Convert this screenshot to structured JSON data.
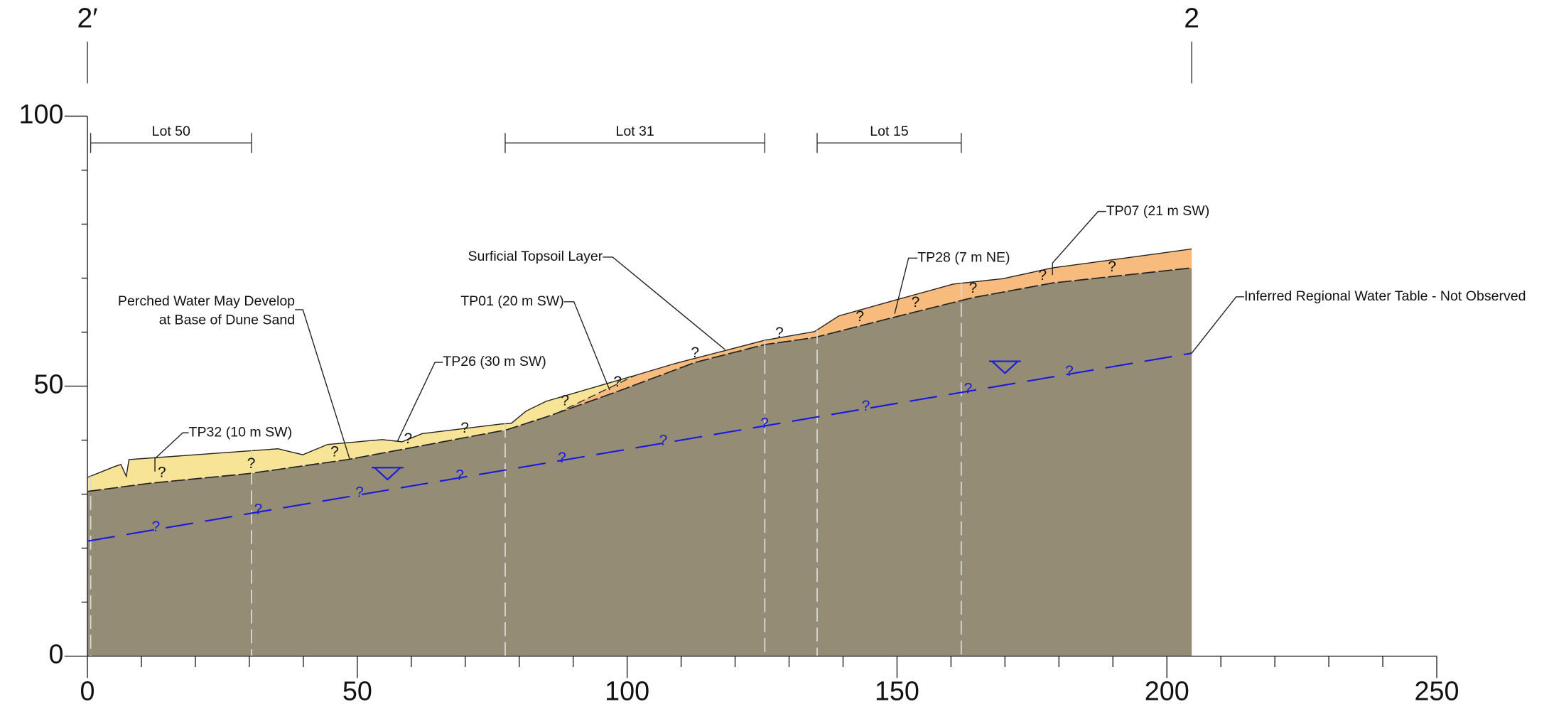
{
  "section": {
    "start_label": "2′",
    "end_label": "2",
    "xlim": [
      0,
      250
    ],
    "ylim": [
      0,
      100
    ],
    "xticks": [
      0,
      50,
      100,
      150,
      200,
      250
    ],
    "yticks": [
      0,
      50,
      100
    ],
    "lots": [
      {
        "label": "Lot 50",
        "from": 0.6,
        "to": 30.4
      },
      {
        "label": "Lot 31",
        "from": 77.4,
        "to": 125.5
      },
      {
        "label": "Lot 15",
        "from": 135.2,
        "to": 161.9
      }
    ],
    "ground_surface": {
      "x": [
        0,
        5,
        6.2,
        7.2,
        7.7,
        35.3,
        39.9,
        44.5,
        54.6,
        58.3,
        62,
        76.7,
        78.5,
        81.3,
        85,
        101.5,
        108.9,
        125.5,
        134.7,
        139.2,
        149.2,
        160.4,
        169.6,
        178.8,
        204.6
      ],
      "y": [
        33.1,
        35.1,
        35.5,
        33.3,
        36.4,
        38.4,
        37.3,
        39.2,
        40.1,
        39.7,
        41.2,
        43,
        43.1,
        45.4,
        47.2,
        52,
        54.2,
        58.5,
        60.1,
        63,
        65.8,
        68.9,
        69.9,
        71.9,
        75.4
      ]
    },
    "dune_sand_base": {
      "x": [
        0,
        11.4,
        29.8,
        48.2,
        61.1,
        77.6,
        85,
        97.9,
        112.6,
        125.5,
        134.7,
        149.2,
        164.1,
        178.8,
        204.6
      ],
      "y": [
        30.5,
        32,
        33.8,
        36.4,
        38.8,
        41.9,
        44.3,
        48.9,
        54.4,
        57.7,
        59,
        62.7,
        66.4,
        69.1,
        71.9
      ]
    },
    "topsoil_base": {
      "x": [
        86.8,
        101.5
      ],
      "y": [
        44.9,
        52
      ]
    },
    "water_table": {
      "x": [
        0,
        204.6
      ],
      "y": [
        21.3,
        56.1
      ]
    },
    "water_symbols": [
      {
        "x": 55.6,
        "y": 32.7
      },
      {
        "x": 170,
        "y": 52.4
      }
    ],
    "test_pits": [
      0.6,
      30.4,
      77.4,
      125.5,
      135.2,
      161.9
    ],
    "colors": {
      "bedrock": "#948c75",
      "dune_sand": "#f7e496",
      "topsoil": "#f8bb7e",
      "water": "#1a1adf"
    }
  },
  "annotations": [
    "Surficial Topsoil Layer",
    "TP01 (20 m SW)",
    "Perched Water May Develop",
    "at Base of Dune Sand",
    "TP26 (30 m SW)",
    "TP32 (10 m SW)",
    "TP28 (7 m NE)",
    "TP07 (21 m SW)",
    "Inferred Regional Water Table - Not Observed"
  ],
  "uncertainty_marker": "?"
}
